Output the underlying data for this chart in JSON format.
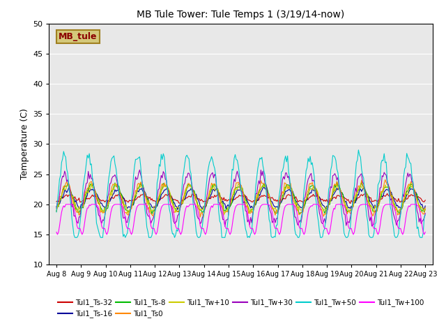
{
  "title": "MB Tule Tower: Tule Temps 1 (3/19/14-now)",
  "ylabel": "Temperature (C)",
  "ylim": [
    10,
    50
  ],
  "yticks": [
    10,
    15,
    20,
    25,
    30,
    35,
    40,
    45,
    50
  ],
  "x_labels": [
    "Aug 8",
    "Aug 9",
    "Aug 10",
    "Aug 11",
    "Aug 12",
    "Aug 13",
    "Aug 14",
    "Aug 15",
    "Aug 16",
    "Aug 17",
    "Aug 18",
    "Aug 19",
    "Aug 20",
    "Aug 21",
    "Aug 22",
    "Aug 23"
  ],
  "bg_color": "#e8e8e8",
  "legend_box_color": "#d4c87a",
  "legend_box_text": "MB_tule",
  "legend_box_text_color": "#8b0000",
  "legend_box_edge_color": "#a08020",
  "series": [
    {
      "label": "Tul1_Ts-32",
      "color": "#cc0000"
    },
    {
      "label": "Tul1_Ts-16",
      "color": "#000099"
    },
    {
      "label": "Tul1_Ts-8",
      "color": "#00bb00"
    },
    {
      "label": "Tul1_Ts0",
      "color": "#ff8800"
    },
    {
      "label": "Tul1_Tw+10",
      "color": "#cccc00"
    },
    {
      "label": "Tul1_Tw+30",
      "color": "#9900bb"
    },
    {
      "label": "Tul1_Tw+50",
      "color": "#00cccc"
    },
    {
      "label": "Tul1_Tw+100",
      "color": "#ff00ff"
    }
  ],
  "figsize": [
    6.4,
    4.8
  ],
  "dpi": 100
}
